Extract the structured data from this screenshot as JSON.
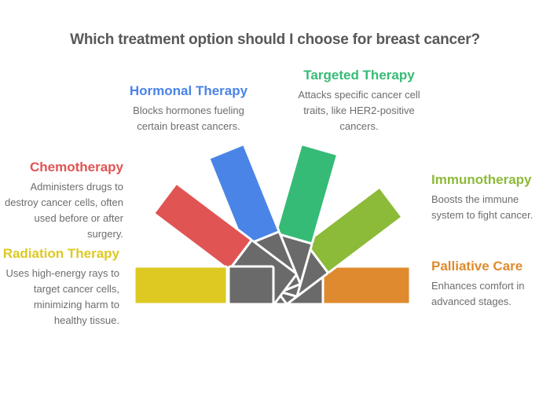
{
  "title": {
    "text": "Which treatment option should I choose for breast cancer?",
    "color": "#57585a"
  },
  "treatments": [
    {
      "id": "chemotherapy",
      "name": "Chemotherapy",
      "color": "#e15454",
      "lines": [
        "Administers drugs to",
        "destroy cancer cells, often",
        "used before or after",
        "surgery."
      ]
    },
    {
      "id": "hormonal-therapy",
      "name": "Hormonal Therapy",
      "color": "#4a84e6",
      "lines": [
        "Blocks hormones fueling",
        "certain breast cancers."
      ]
    },
    {
      "id": "targeted-therapy",
      "name": "Targeted Therapy",
      "color": "#36bb76",
      "lines": [
        "Attacks specific cancer cell",
        "traits, like HER2-positive",
        "cancers."
      ]
    },
    {
      "id": "immunotherapy",
      "name": "Immunotherapy",
      "color": "#8cba39",
      "lines": [
        "Boosts the immune",
        "system to fight cancer."
      ]
    },
    {
      "id": "radiation-therapy",
      "name": "Radiation Therapy",
      "color": "#ddc922",
      "lines": [
        "Uses high-energy rays to",
        "target cancer cells,",
        "minimizing harm to",
        "healthy tissue."
      ]
    },
    {
      "id": "palliative-care",
      "name": "Palliative Care",
      "color": "#df8a2e",
      "lines": [
        "Enhances comfort in",
        "advanced stages."
      ]
    }
  ],
  "fan": {
    "center_gray": "#6a6a6a",
    "seam_white": "#ffffff",
    "body_text_color": "#6c6d70"
  }
}
